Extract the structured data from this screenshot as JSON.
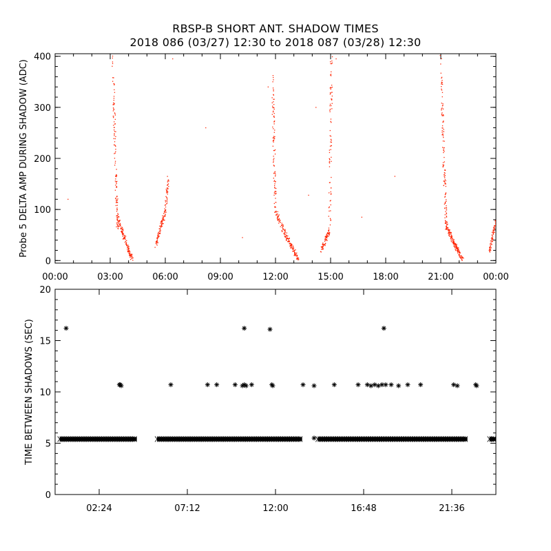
{
  "title_line1": "RBSP-B SHORT ANT. SHADOW TIMES",
  "title_line2": "2018 086 (03/27) 12:30 to 2018 087 (03/28) 12:30",
  "chart_data": [
    {
      "type": "scatter",
      "ylabel": "Probe 5 DELTA AMP DURING SHADOW (ADC)",
      "xlabel": "",
      "xlim": [
        0,
        24
      ],
      "ylim": [
        -5,
        405
      ],
      "x_tick_values": [
        0,
        3,
        6,
        9,
        12,
        15,
        18,
        21,
        24
      ],
      "x_tick_labels": [
        "00:00",
        "03:00",
        "06:00",
        "09:00",
        "12:00",
        "15:00",
        "18:00",
        "21:00",
        "00:00"
      ],
      "y_tick_values": [
        0,
        100,
        200,
        300,
        400
      ],
      "y_tick_labels": [
        "0",
        "100",
        "200",
        "300",
        "400"
      ],
      "marker_color": "#ff2200",
      "traces": [
        {
          "x_start": 3.15,
          "x_end": 3.4,
          "y_start": 400,
          "y_end": 60,
          "n": 120
        },
        {
          "x_start": 3.4,
          "x_end": 4.2,
          "y_start": 90,
          "y_end": 2,
          "n": 130
        },
        {
          "x_start": 5.5,
          "x_end": 6.0,
          "y_start": 30,
          "y_end": 95,
          "n": 90
        },
        {
          "x_start": 6.0,
          "x_end": 6.15,
          "y_start": 95,
          "y_end": 160,
          "n": 45
        },
        {
          "x_start": 11.85,
          "x_end": 12.0,
          "y_start": 360,
          "y_end": 100,
          "n": 90
        },
        {
          "x_start": 12.0,
          "x_end": 13.25,
          "y_start": 100,
          "y_end": 2,
          "n": 160
        },
        {
          "x_start": 14.5,
          "x_end": 14.95,
          "y_start": 18,
          "y_end": 60,
          "n": 70
        },
        {
          "x_start": 14.95,
          "x_end": 15.05,
          "y_start": 60,
          "y_end": 400,
          "n": 80
        },
        {
          "x_start": 21.0,
          "x_end": 21.3,
          "y_start": 400,
          "y_end": 60,
          "n": 130
        },
        {
          "x_start": 21.3,
          "x_end": 22.2,
          "y_start": 70,
          "y_end": 2,
          "n": 150
        },
        {
          "x_start": 23.65,
          "x_end": 24.0,
          "y_start": 15,
          "y_end": 75,
          "n": 70
        }
      ],
      "isolated_points": [
        [
          0.7,
          120
        ],
        [
          8.2,
          260
        ],
        [
          10.2,
          45
        ],
        [
          13.8,
          128
        ],
        [
          14.2,
          300
        ],
        [
          16.7,
          85
        ],
        [
          18.5,
          165
        ],
        [
          11.6,
          340
        ],
        [
          6.4,
          395
        ],
        [
          15.3,
          395
        ]
      ]
    },
    {
      "type": "scatter",
      "ylabel": "TIME BETWEEN SHADOWS (SEC)",
      "xlabel": "",
      "xlim": [
        0,
        24
      ],
      "ylim": [
        0,
        20
      ],
      "x_tick_values": [
        2.4,
        7.2,
        12.0,
        16.8,
        21.6
      ],
      "x_tick_labels": [
        "02:24",
        "07:12",
        "12:00",
        "16:48",
        "21:36"
      ],
      "y_tick_values": [
        0,
        5,
        10,
        15,
        20
      ],
      "y_tick_labels": [
        "0",
        "5",
        "10",
        "15",
        "20"
      ],
      "marker_color": "#000000",
      "baseline_value": 5.4,
      "baseline_segments": [
        [
          0.25,
          4.45
        ],
        [
          5.55,
          13.45
        ],
        [
          14.3,
          22.45
        ],
        [
          23.65,
          24.0
        ]
      ],
      "high_points": [
        [
          0.6,
          16.2
        ],
        [
          3.5,
          10.7
        ],
        [
          3.55,
          10.7
        ],
        [
          3.6,
          10.6
        ],
        [
          6.3,
          10.7
        ],
        [
          8.3,
          10.7
        ],
        [
          8.8,
          10.7
        ],
        [
          9.8,
          10.7
        ],
        [
          10.2,
          10.6
        ],
        [
          10.3,
          10.7
        ],
        [
          10.4,
          10.6
        ],
        [
          10.7,
          10.7
        ],
        [
          10.3,
          16.2
        ],
        [
          11.8,
          10.7
        ],
        [
          11.85,
          10.6
        ],
        [
          11.7,
          16.1
        ],
        [
          13.5,
          10.7
        ],
        [
          14.1,
          10.6
        ],
        [
          15.2,
          10.7
        ],
        [
          16.5,
          10.7
        ],
        [
          17.0,
          10.7
        ],
        [
          17.2,
          10.6
        ],
        [
          17.4,
          10.7
        ],
        [
          17.6,
          10.6
        ],
        [
          17.8,
          10.7
        ],
        [
          17.9,
          16.2
        ],
        [
          18.0,
          10.7
        ],
        [
          18.3,
          10.7
        ],
        [
          18.7,
          10.6
        ],
        [
          19.2,
          10.7
        ],
        [
          19.9,
          10.7
        ],
        [
          21.7,
          10.7
        ],
        [
          21.9,
          10.6
        ],
        [
          22.9,
          10.7
        ],
        [
          22.95,
          10.6
        ],
        [
          14.1,
          5.5
        ]
      ]
    }
  ]
}
